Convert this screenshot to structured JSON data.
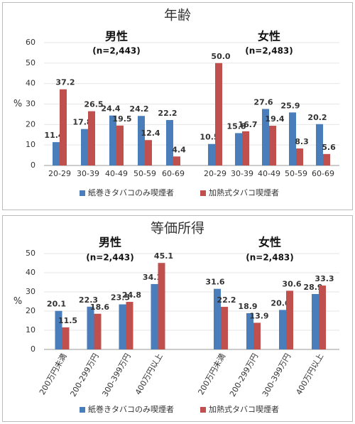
{
  "chart_data": [
    {
      "type": "bar",
      "title": "年齢",
      "ylabel": "%",
      "ylim": [
        0,
        60
      ],
      "yticks": [
        0,
        10,
        20,
        30,
        40,
        50,
        60
      ],
      "grid": true,
      "rotate_x_labels": false,
      "legend": [
        {
          "name": "紙巻きタバコのみ喫煙者",
          "color": "#4a7ebb"
        },
        {
          "name": "加熱式タバコ喫煙者",
          "color": "#c0504d"
        }
      ],
      "groups": [
        {
          "label": "男性",
          "n": "(n=2,443)",
          "categories": [
            "20-29",
            "30-39",
            "40-49",
            "50-59",
            "60-69"
          ],
          "series": [
            {
              "values": [
                11.4,
                17.8,
                24.4,
                24.2,
                22.2
              ]
            },
            {
              "values": [
                37.2,
                26.5,
                19.5,
                12.4,
                4.4
              ]
            }
          ]
        },
        {
          "label": "女性",
          "n": "(n=2,483)",
          "categories": [
            "20-29",
            "30-39",
            "40-49",
            "50-59",
            "60-69"
          ],
          "series": [
            {
              "values": [
                10.5,
                15.8,
                27.6,
                25.9,
                20.2
              ]
            },
            {
              "values": [
                50,
                16.7,
                19.4,
                8.3,
                5.6
              ],
              "value_labels": [
                "50.0",
                "16.7",
                "19.4",
                "8.3",
                "5.6"
              ]
            }
          ]
        }
      ]
    },
    {
      "type": "bar",
      "title": "等価所得",
      "ylabel": "%",
      "ylim": [
        0,
        50
      ],
      "yticks": [
        0,
        10,
        20,
        30,
        40,
        50
      ],
      "grid": true,
      "rotate_x_labels": true,
      "legend": [
        {
          "name": "紙巻きタバコのみ喫煙者",
          "color": "#4a7ebb"
        },
        {
          "name": "加熱式タバコ喫煙者",
          "color": "#c0504d"
        }
      ],
      "groups": [
        {
          "label": "男性",
          "n": "(n=2,443)",
          "categories": [
            "200万円未満",
            "200-299万円",
            "300-399万円",
            "400万円以上"
          ],
          "series": [
            {
              "values": [
                20.1,
                22.3,
                23.5,
                34.1
              ]
            },
            {
              "values": [
                11.5,
                18.6,
                24.8,
                45.1
              ]
            }
          ]
        },
        {
          "label": "女性",
          "n": "(n=2,483)",
          "categories": [
            "200万円未満",
            "200-299万円",
            "300-399万円",
            "400万円以上"
          ],
          "series": [
            {
              "values": [
                31.6,
                18.9,
                20.6,
                28.9
              ]
            },
            {
              "values": [
                22.2,
                13.9,
                30.6,
                33.3
              ]
            }
          ]
        }
      ]
    }
  ]
}
